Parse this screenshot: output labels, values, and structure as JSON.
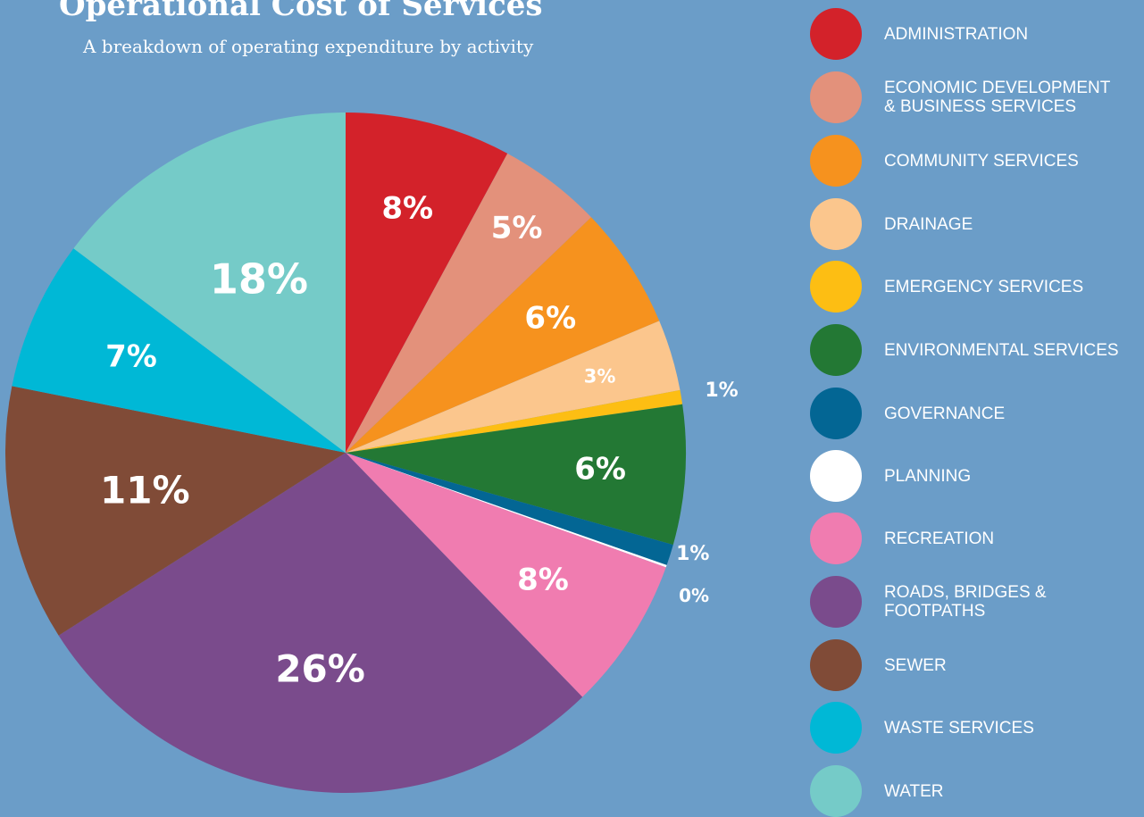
{
  "chart_data": {
    "type": "pie",
    "title": "Operational Cost of Services",
    "subtitle": "A breakdown of operating expenditure by activity",
    "legend_position": "right",
    "slices": [
      {
        "label": "ADMINISTRATION",
        "display": "ADMINISTRATION",
        "value": 8,
        "value_label": "8%",
        "color": "#d3222a"
      },
      {
        "label": "ECONOMIC DEVELOPMENT & BUSINESS SERVICES",
        "display": "ECONOMIC DEVELOPMENT\n& BUSINESS SERVICES",
        "value": 5,
        "value_label": "5%",
        "color": "#e3917b"
      },
      {
        "label": "COMMUNITY SERVICES",
        "display": "COMMUNITY SERVICES",
        "value": 6,
        "value_label": "6%",
        "color": "#f6921e"
      },
      {
        "label": "DRAINAGE",
        "display": "DRAINAGE",
        "value": 3,
        "value_label": "3%",
        "color": "#fbc68d"
      },
      {
        "label": "EMERGENCY SERVICES",
        "display": "EMERGENCY SERVICES",
        "value": 1,
        "value_label": "1%",
        "color": "#fdbe13"
      },
      {
        "label": "ENVIRONMENTAL SERVICES",
        "display": "ENVIRONMENTAL SERVICES",
        "value": 6,
        "value_label": "6%",
        "color": "#237834"
      },
      {
        "label": "GOVERNANCE",
        "display": "GOVERNANCE",
        "value": 1,
        "value_label": "1%",
        "color": "#036694"
      },
      {
        "label": "PLANNING",
        "display": "PLANNING",
        "value": 0,
        "value_label": "0%",
        "color": "#ffffff"
      },
      {
        "label": "RECREATION",
        "display": "RECREATION",
        "value": 8,
        "value_label": "8%",
        "color": "#f07cb0"
      },
      {
        "label": "ROADS, BRIDGES & FOOTPATHS",
        "display": "ROADS, BRIDGES &\nFOOTPATHS",
        "value": 26,
        "value_label": "26%",
        "color": "#7a4b8c"
      },
      {
        "label": "SEWER",
        "display": "SEWER",
        "value": 11,
        "value_label": "11%",
        "color": "#804b37"
      },
      {
        "label": "WASTE SERVICES",
        "display": "WASTE SERVICES",
        "value": 7,
        "value_label": "7%",
        "color": "#00b8d6"
      },
      {
        "label": "WATER",
        "display": "WATER",
        "value": 18,
        "value_label": "18%",
        "color": "#75cbc8"
      }
    ]
  }
}
